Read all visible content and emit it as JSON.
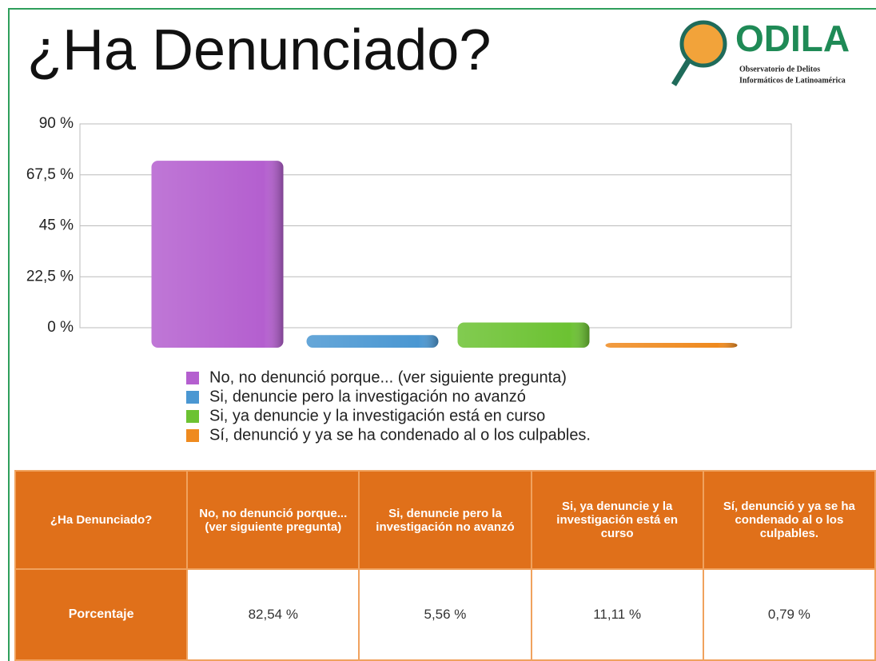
{
  "chart_data": {
    "type": "bar",
    "title": "¿Ha Denunciado?",
    "categories": [
      "No, no denunció porque... (ver siguiente pregunta)",
      "Si, denuncie pero la investigación no avanzó",
      "Si, ya denuncie y la investigación está en curso",
      "Sí, denunció y ya se ha condenado al o los culpables."
    ],
    "values": [
      82.54,
      5.56,
      11.11,
      0.79
    ],
    "value_labels": [
      "82,54 %",
      "5,56 %",
      "11,11 %",
      "0,79 %"
    ],
    "colors": [
      "#b45fcf",
      "#4a97d2",
      "#6cc232",
      "#ef8a1f"
    ],
    "ylim": [
      0,
      90
    ],
    "yticks": [
      {
        "value": 0,
        "label": "0 %"
      },
      {
        "value": 22.5,
        "label": "22,5 %"
      },
      {
        "value": 45,
        "label": "45 %"
      },
      {
        "value": 67.5,
        "label": "67,5 %"
      },
      {
        "value": 90,
        "label": "90 %"
      }
    ],
    "grid": true
  },
  "logo": {
    "name": "ODILA",
    "line1": "Observatorio de Delitos",
    "line2": "Informáticos de Latinoamérica"
  },
  "table": {
    "corner": "¿Ha Denunciado?",
    "row_label": "Porcentaje"
  }
}
